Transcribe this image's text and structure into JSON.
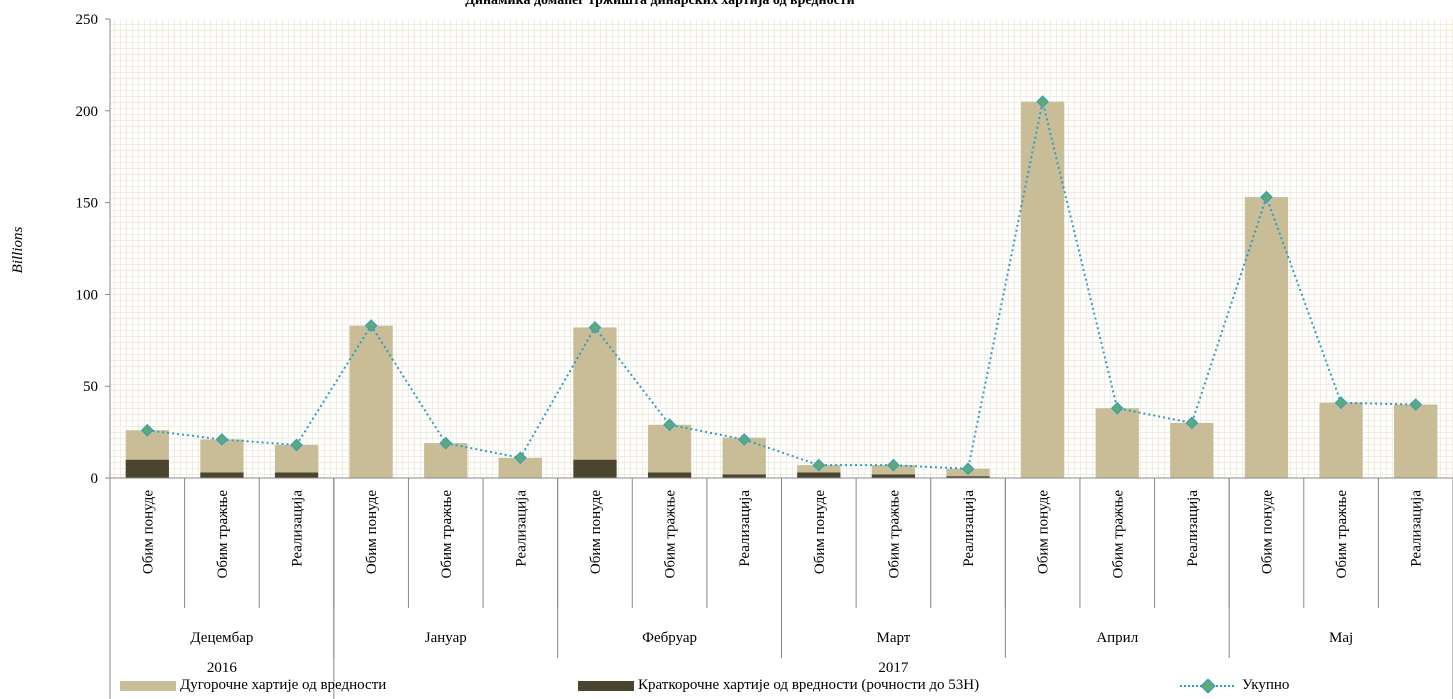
{
  "chart_data": {
    "type": "bar",
    "title": "Динамика домаћег тржишта динарских хартија од вредности",
    "ylabel": "Billions",
    "ylim": [
      0,
      250
    ],
    "yticks": [
      0,
      50,
      100,
      150,
      200,
      250
    ],
    "grid": true,
    "stacked": true,
    "categories": [
      "Обим понуде",
      "Обим тражње",
      "Реализација",
      "Обим понуде",
      "Обим тражње",
      "Реализација",
      "Обим понуде",
      "Обим тражње",
      "Реализација",
      "Обим понуде",
      "Обим тражње",
      "Реализација",
      "Обим понуде",
      "Обим тражње",
      "Реализација",
      "Обим понуде",
      "Обим тражње",
      "Реализација"
    ],
    "months": [
      "Децембар",
      "Јануар",
      "Фебруар",
      "Март",
      "Април",
      "Мај"
    ],
    "years": [
      {
        "label": "2016",
        "months": 1
      },
      {
        "label": "2017",
        "months": 5
      }
    ],
    "series": [
      {
        "name": "Дугорочне хартије од вредности",
        "type": "bar",
        "color": "#c8bd96",
        "values": [
          16,
          18,
          15,
          83,
          19,
          11,
          72,
          26,
          20,
          4,
          5,
          4,
          205,
          38,
          30,
          153,
          41,
          40
        ]
      },
      {
        "name": "Краткорочне хартије од вредности (рочности до 53Н)",
        "type": "bar",
        "color": "#4b4530",
        "values": [
          10,
          3,
          3,
          0,
          0,
          0,
          10,
          3,
          2,
          3,
          2,
          1,
          0,
          0,
          0,
          0,
          0,
          0
        ]
      },
      {
        "name": "Укупно",
        "type": "line",
        "color": "#2e9fc0",
        "marker_color": "#5fa87a",
        "values": [
          26,
          21,
          18,
          83,
          19,
          11,
          82,
          29,
          21,
          7,
          7,
          5,
          205,
          38,
          30,
          153,
          41,
          40
        ]
      }
    ],
    "legend_position": "bottom"
  }
}
